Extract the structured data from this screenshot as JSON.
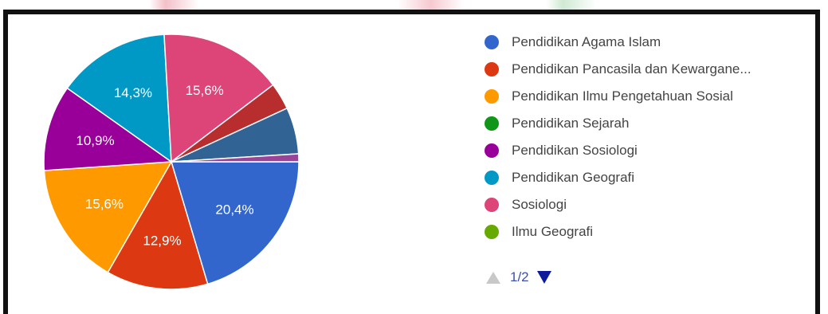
{
  "chart_data": {
    "type": "pie",
    "slices": [
      {
        "name": "Pendidikan Agama Islam",
        "value": 20.4,
        "label": "20,4%",
        "color": "#3366cc"
      },
      {
        "name": "Pendidikan Pancasila dan Kewargane...",
        "value": 12.9,
        "label": "12,9%",
        "color": "#dc3912"
      },
      {
        "name": "Pendidikan Ilmu Pengetahuan Sosial",
        "value": 15.6,
        "label": "15,6%",
        "color": "#ff9900"
      },
      {
        "name": "Pendidikan Sejarah",
        "value": 0,
        "label": "",
        "color": "#109618"
      },
      {
        "name": "Pendidikan Sosiologi",
        "value": 10.9,
        "label": "10,9%",
        "color": "#990099"
      },
      {
        "name": "Pendidikan Geografi",
        "value": 14.3,
        "label": "14,3%",
        "color": "#0099c6"
      },
      {
        "name": "Sosiologi",
        "value": 15.6,
        "label": "15,6%",
        "color": "#dd4477"
      },
      {
        "name": "Ilmu Geografi",
        "value": 0,
        "label": "",
        "color": "#66aa00"
      },
      {
        "name": "",
        "value": 3.4,
        "label": "",
        "color": "#b82e2e"
      },
      {
        "name": "",
        "value": 5.9,
        "label": "",
        "color": "#316395"
      },
      {
        "name": "",
        "value": 1.0,
        "label": "",
        "color": "#994499"
      }
    ],
    "legend_position": "right"
  },
  "legend": {
    "items": [
      {
        "label": "Pendidikan Agama Islam",
        "color": "#3366cc"
      },
      {
        "label": "Pendidikan Pancasila dan Kewargane...",
        "color": "#dc3912"
      },
      {
        "label": "Pendidikan Ilmu Pengetahuan Sosial",
        "color": "#ff9900"
      },
      {
        "label": "Pendidikan Sejarah",
        "color": "#109618"
      },
      {
        "label": "Pendidikan Sosiologi",
        "color": "#990099"
      },
      {
        "label": "Pendidikan Geografi",
        "color": "#0099c6"
      },
      {
        "label": "Sosiologi",
        "color": "#dd4477"
      },
      {
        "label": "Ilmu Geografi",
        "color": "#66aa00"
      }
    ]
  },
  "pager": {
    "text": "1/2",
    "prev_icon": "triangle-up-icon",
    "next_icon": "triangle-down-icon"
  }
}
